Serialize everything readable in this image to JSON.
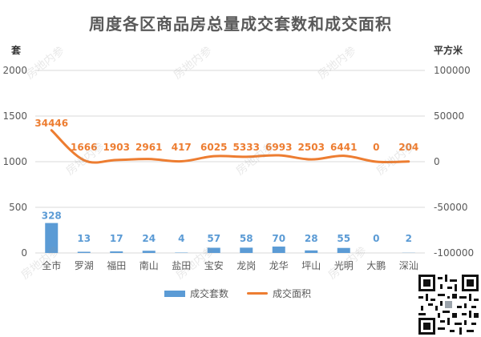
{
  "title": "周度各区商品房总量成交套数和成交面积",
  "left_unit": "套",
  "right_unit": "平方米",
  "watermark": "房地内参",
  "colors": {
    "bar": "#5B9BD5",
    "line": "#ED7D31",
    "bar_label": "#5B9BD5",
    "line_label": "#ED7D31"
  },
  "legend": {
    "bar_label": "成交套数",
    "line_label": "成交面积"
  },
  "chart_data": {
    "type": "bar",
    "categories": [
      "全市",
      "罗湖",
      "福田",
      "南山",
      "盐田",
      "宝安",
      "龙岗",
      "龙华",
      "坪山",
      "光明",
      "大鹏",
      "深汕"
    ],
    "series": [
      {
        "name": "成交套数",
        "type": "bar",
        "axis": "left",
        "values": [
          328,
          13,
          17,
          24,
          4,
          57,
          58,
          70,
          28,
          55,
          0,
          2
        ]
      },
      {
        "name": "成交面积",
        "type": "line",
        "axis": "right",
        "values": [
          34446,
          1666,
          1903,
          2961,
          417,
          6025,
          5333,
          6993,
          2503,
          6441,
          0,
          204
        ]
      }
    ],
    "left_axis": {
      "ylim": [
        0,
        2000
      ],
      "ticks": [
        0,
        500,
        1000,
        1500,
        2000
      ]
    },
    "right_axis": {
      "ylim": [
        -100000,
        100000
      ],
      "ticks": [
        -100000,
        -50000,
        0,
        50000,
        100000
      ]
    },
    "legend_position": "bottom",
    "grid": true
  }
}
